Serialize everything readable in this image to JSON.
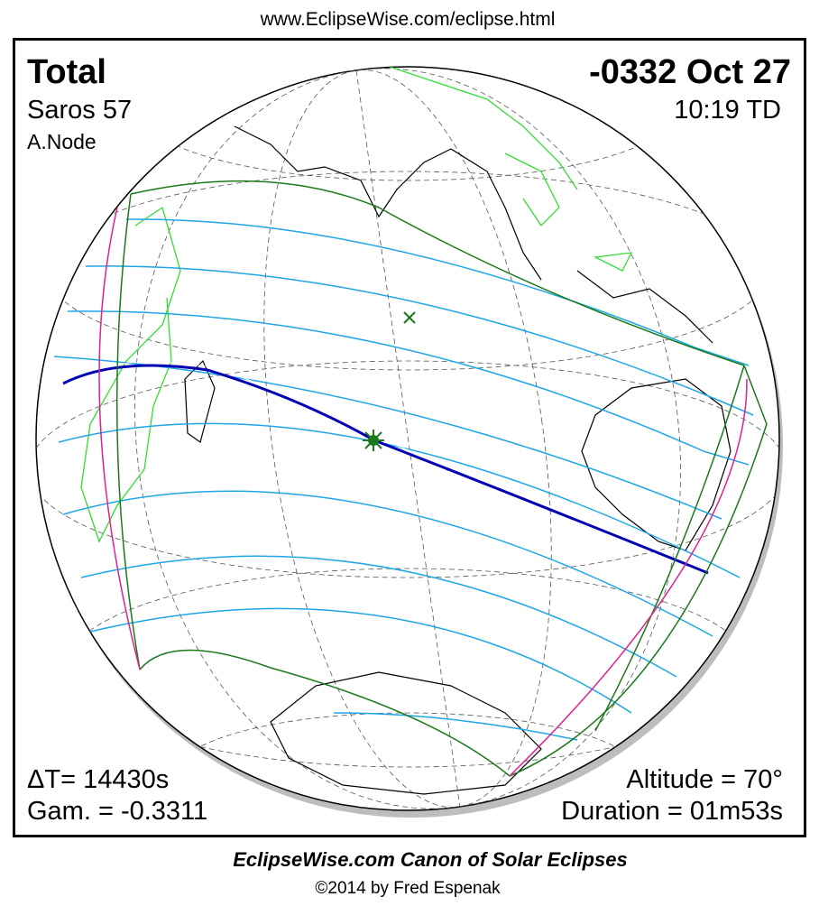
{
  "header": {
    "url": "www.EclipseWise.com/eclipse.html"
  },
  "eclipse": {
    "type": "Total",
    "saros": "Saros  57",
    "node": "A.Node",
    "date": "-0332 Oct 27",
    "time": "10:19 TD",
    "delta_t": "ΔT=  14430s",
    "gamma": "Gam. = -0.3311",
    "altitude": "Altitude = 70°",
    "duration": "Duration = 01m53s"
  },
  "footer": {
    "title": "EclipseWise.com Canon of Solar Eclipses",
    "credit": "©2014 by Fred Espenak"
  }
}
